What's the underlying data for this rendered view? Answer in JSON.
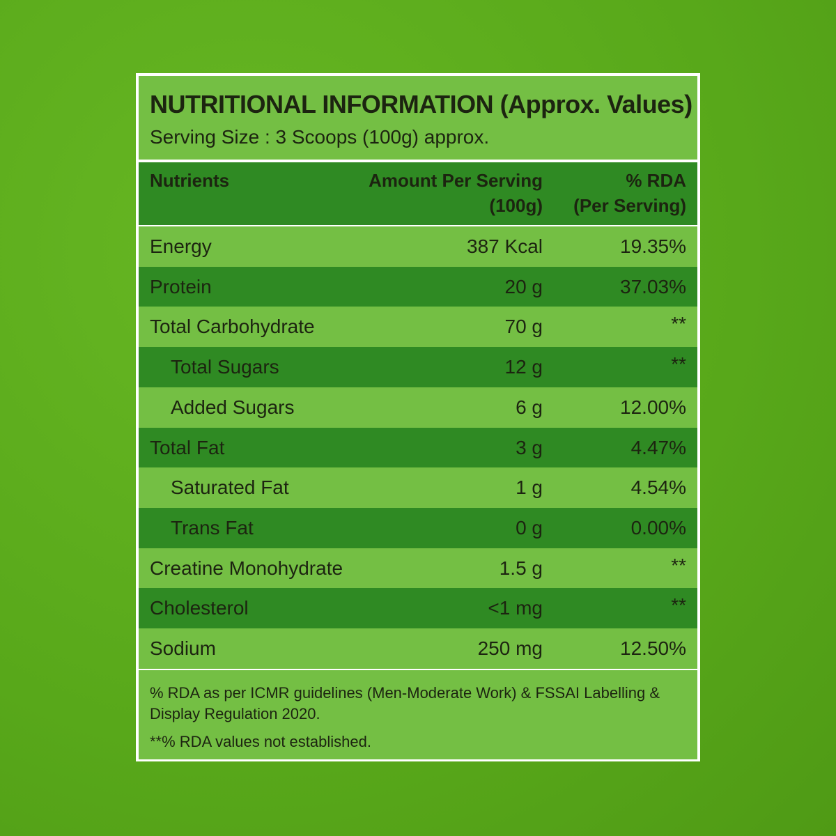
{
  "header": {
    "title": "NUTRITIONAL INFORMATION (Approx. Values)",
    "subtitle": "Serving Size : 3 Scoops (100g) approx."
  },
  "table": {
    "columns": [
      [
        "Nutrients"
      ],
      [
        "Amount Per Serving",
        "(100g)"
      ],
      [
        "% RDA",
        "(Per Serving)"
      ]
    ],
    "rows": [
      {
        "cells": [
          "Energy",
          "387 Kcal",
          "19.35%"
        ],
        "sub": false
      },
      {
        "cells": [
          "Protein",
          "20 g",
          "37.03%"
        ],
        "sub": false
      },
      {
        "cells": [
          "Total Carbohydrate",
          "70 g",
          "**"
        ],
        "sub": false
      },
      {
        "cells": [
          "Total Sugars",
          "12 g",
          "**"
        ],
        "sub": true
      },
      {
        "cells": [
          "Added Sugars",
          "6 g",
          "12.00%"
        ],
        "sub": true
      },
      {
        "cells": [
          "Total Fat",
          "3 g",
          "4.47%"
        ],
        "sub": false
      },
      {
        "cells": [
          "Saturated Fat",
          "1 g",
          "4.54%"
        ],
        "sub": true
      },
      {
        "cells": [
          "Trans Fat",
          "0 g",
          "0.00%"
        ],
        "sub": true
      },
      {
        "cells": [
          "Creatine Monohydrate",
          "1.5 g",
          "**"
        ],
        "sub": false
      },
      {
        "cells": [
          "Cholesterol",
          "<1 mg",
          "**"
        ],
        "sub": false
      },
      {
        "cells": [
          "Sodium",
          "250 mg",
          "12.50%"
        ],
        "sub": false
      }
    ]
  },
  "footnotes": [
    "% RDA as per ICMR guidelines (Men-Moderate Work) & FSSAI Labelling & Display Regulation 2020.",
    "**% RDA values not established."
  ]
}
